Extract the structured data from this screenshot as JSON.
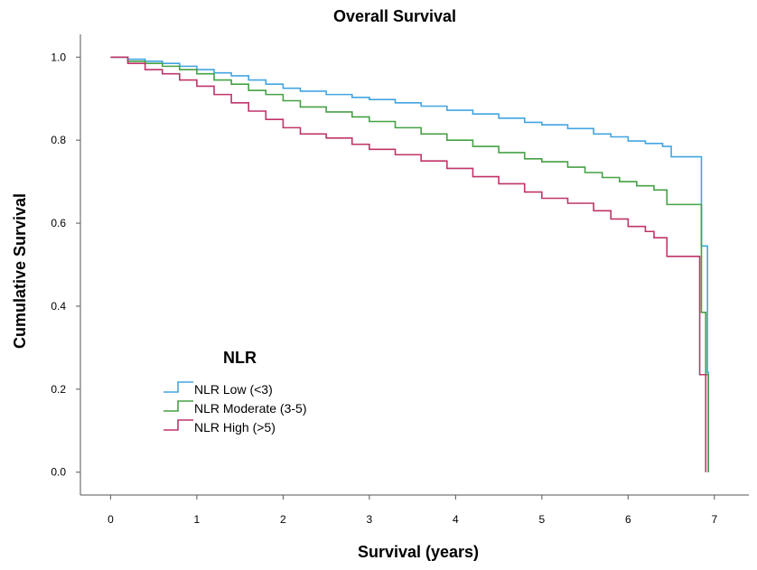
{
  "chart_data": {
    "type": "line",
    "title": "Overall Survival",
    "xlabel": "Survival (years)",
    "ylabel": "Cumulative Survival",
    "xlim": [
      -0.35,
      7.4
    ],
    "ylim": [
      -0.055,
      1.055
    ],
    "x_ticks": [
      "0",
      "1",
      "2",
      "3",
      "4",
      "5",
      "6",
      "7"
    ],
    "y_ticks": [
      "0.0",
      "0.2",
      "0.4",
      "0.6",
      "0.8",
      "1.0"
    ],
    "grid": false,
    "legend_title": "NLR",
    "legend_position": "bottom-left",
    "series": [
      {
        "name": "NLR Low (<3)",
        "color": "#42a5e0",
        "points": [
          [
            0,
            1.0
          ],
          [
            0.1,
            1.0
          ],
          [
            0.2,
            0.995
          ],
          [
            0.4,
            0.99
          ],
          [
            0.6,
            0.985
          ],
          [
            0.8,
            0.978
          ],
          [
            1.0,
            0.97
          ],
          [
            1.2,
            0.962
          ],
          [
            1.4,
            0.955
          ],
          [
            1.6,
            0.945
          ],
          [
            1.8,
            0.935
          ],
          [
            2.0,
            0.925
          ],
          [
            2.2,
            0.918
          ],
          [
            2.5,
            0.91
          ],
          [
            2.8,
            0.903
          ],
          [
            3.0,
            0.898
          ],
          [
            3.3,
            0.89
          ],
          [
            3.6,
            0.882
          ],
          [
            3.9,
            0.872
          ],
          [
            4.2,
            0.863
          ],
          [
            4.5,
            0.853
          ],
          [
            4.8,
            0.843
          ],
          [
            5.0,
            0.837
          ],
          [
            5.3,
            0.828
          ],
          [
            5.6,
            0.815
          ],
          [
            5.8,
            0.808
          ],
          [
            6.0,
            0.798
          ],
          [
            6.2,
            0.792
          ],
          [
            6.4,
            0.785
          ],
          [
            6.5,
            0.782
          ],
          [
            6.5,
            0.76
          ],
          [
            6.85,
            0.76
          ],
          [
            6.85,
            0.545
          ],
          [
            6.92,
            0.545
          ],
          [
            6.92,
            0.24
          ],
          [
            6.93,
            0.24
          ],
          [
            6.93,
            0.0
          ]
        ]
      },
      {
        "name": "NLR Moderate (3-5)",
        "color": "#45a145",
        "points": [
          [
            0,
            1.0
          ],
          [
            0.1,
            1.0
          ],
          [
            0.2,
            0.99
          ],
          [
            0.4,
            0.985
          ],
          [
            0.6,
            0.978
          ],
          [
            0.8,
            0.97
          ],
          [
            1.0,
            0.96
          ],
          [
            1.2,
            0.945
          ],
          [
            1.4,
            0.935
          ],
          [
            1.6,
            0.92
          ],
          [
            1.8,
            0.91
          ],
          [
            2.0,
            0.895
          ],
          [
            2.2,
            0.88
          ],
          [
            2.5,
            0.868
          ],
          [
            2.8,
            0.856
          ],
          [
            3.0,
            0.845
          ],
          [
            3.3,
            0.83
          ],
          [
            3.6,
            0.815
          ],
          [
            3.9,
            0.8
          ],
          [
            4.2,
            0.785
          ],
          [
            4.5,
            0.77
          ],
          [
            4.8,
            0.755
          ],
          [
            5.0,
            0.748
          ],
          [
            5.3,
            0.735
          ],
          [
            5.5,
            0.722
          ],
          [
            5.7,
            0.71
          ],
          [
            5.9,
            0.7
          ],
          [
            6.1,
            0.69
          ],
          [
            6.3,
            0.68
          ],
          [
            6.45,
            0.675
          ],
          [
            6.45,
            0.645
          ],
          [
            6.85,
            0.645
          ],
          [
            6.85,
            0.385
          ],
          [
            6.9,
            0.385
          ],
          [
            6.9,
            0.235
          ],
          [
            6.93,
            0.235
          ],
          [
            6.93,
            0.0
          ]
        ]
      },
      {
        "name": "NLR High (>5)",
        "color": "#c0346a",
        "points": [
          [
            0,
            1.0
          ],
          [
            0.1,
            1.0
          ],
          [
            0.2,
            0.985
          ],
          [
            0.4,
            0.97
          ],
          [
            0.6,
            0.96
          ],
          [
            0.8,
            0.945
          ],
          [
            1.0,
            0.93
          ],
          [
            1.2,
            0.91
          ],
          [
            1.4,
            0.89
          ],
          [
            1.6,
            0.87
          ],
          [
            1.8,
            0.85
          ],
          [
            2.0,
            0.83
          ],
          [
            2.2,
            0.815
          ],
          [
            2.5,
            0.805
          ],
          [
            2.8,
            0.79
          ],
          [
            3.0,
            0.778
          ],
          [
            3.3,
            0.765
          ],
          [
            3.6,
            0.75
          ],
          [
            3.9,
            0.732
          ],
          [
            4.2,
            0.712
          ],
          [
            4.5,
            0.695
          ],
          [
            4.8,
            0.675
          ],
          [
            5.0,
            0.66
          ],
          [
            5.3,
            0.648
          ],
          [
            5.6,
            0.63
          ],
          [
            5.8,
            0.61
          ],
          [
            6.0,
            0.592
          ],
          [
            6.2,
            0.58
          ],
          [
            6.3,
            0.565
          ],
          [
            6.45,
            0.553
          ],
          [
            6.45,
            0.52
          ],
          [
            6.83,
            0.52
          ],
          [
            6.83,
            0.235
          ],
          [
            6.9,
            0.235
          ],
          [
            6.9,
            0.0
          ]
        ]
      }
    ]
  }
}
